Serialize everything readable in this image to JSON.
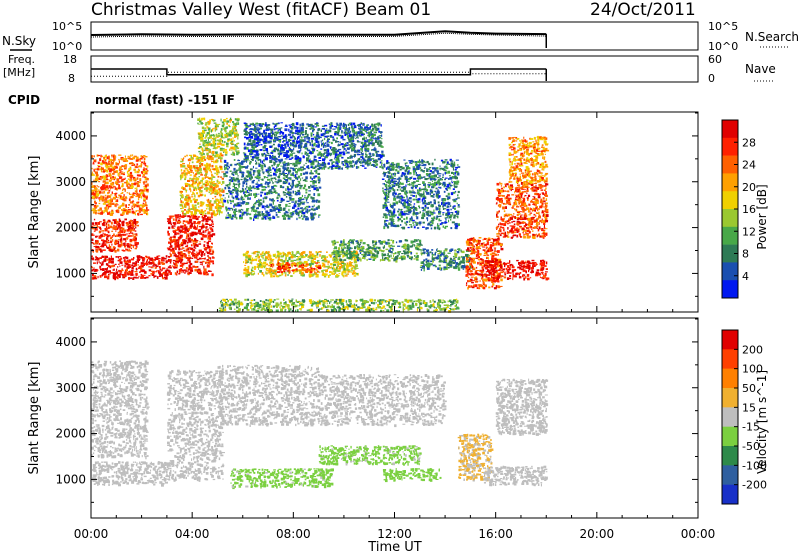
{
  "header": {
    "station": "Christmas Valley West (fitACF)",
    "beam": "Beam 01",
    "date": "24/Oct/2011"
  },
  "noise_panel": {
    "left_label": "N.Sky",
    "right_label": "N.Search",
    "left_ticks": [
      "10^5",
      "10^0"
    ],
    "right_ticks": [
      "10^5",
      "10^0"
    ]
  },
  "freq_panel": {
    "left_label_1": "Freq.",
    "left_label_2": "[MHz]",
    "right_label": "Nave",
    "left_ticks": [
      "18",
      "8"
    ],
    "right_ticks": [
      "60",
      "0"
    ]
  },
  "cpid": {
    "label": "CPID",
    "text": "normal (fast) -151 IF"
  },
  "colors": {
    "background": "#ffffff",
    "axis": "#000000"
  },
  "chart_data": [
    {
      "type": "line",
      "panel": "noise",
      "x_unit": "hours UT",
      "xlim": [
        0,
        24
      ],
      "y_scale": "log",
      "ylim": [
        1,
        100000
      ],
      "series": [
        {
          "name": "N.Sky",
          "x": [
            0,
            2,
            4,
            6,
            8,
            10,
            12,
            14,
            15,
            16,
            18
          ],
          "y": [
            500,
            700,
            600,
            650,
            600,
            550,
            600,
            3000,
            1500,
            1000,
            800
          ]
        },
        {
          "name": "N.Search",
          "x": [
            0,
            2,
            4,
            6,
            8,
            10,
            12,
            14,
            15,
            16,
            18
          ],
          "y": [
            200,
            300,
            250,
            260,
            250,
            240,
            260,
            1200,
            700,
            500,
            300
          ]
        }
      ]
    },
    {
      "type": "line",
      "panel": "frequency",
      "x_unit": "hours UT",
      "xlim": [
        0,
        24
      ],
      "ylim": [
        8,
        18
      ],
      "series": [
        {
          "name": "Freq.",
          "x": [
            0,
            3,
            3,
            15,
            15,
            18
          ],
          "y": [
            13.0,
            13.0,
            10.6,
            10.6,
            13.0,
            13.0
          ]
        },
        {
          "name": "Nave",
          "x": [
            0,
            3,
            3,
            15,
            15,
            18
          ],
          "y": [
            12,
            12,
            22,
            22,
            18,
            18
          ]
        }
      ]
    },
    {
      "type": "heatmap",
      "panel": "power",
      "xlabel": "",
      "ylabel": "Slant Range [km]",
      "xlim": [
        0,
        24
      ],
      "ylim": [
        180,
        4500
      ],
      "yticks": [
        1000,
        2000,
        3000,
        4000
      ],
      "colorbar": {
        "label": "Power [dB]",
        "ticks": [
          "4",
          "8",
          "12",
          "16",
          "20",
          "24",
          "28"
        ],
        "colors": [
          "#0018f0",
          "#1a4fb0",
          "#2e7a55",
          "#48a848",
          "#9ac830",
          "#f0d000",
          "#ffa000",
          "#ff6000",
          "#ff2000",
          "#e00000"
        ],
        "range": [
          0,
          30
        ]
      },
      "echo_regions": [
        {
          "t0": 0.0,
          "t1": 3.0,
          "r0": 900,
          "r1": 1400,
          "power": 28
        },
        {
          "t0": 0.0,
          "t1": 1.8,
          "r0": 1500,
          "r1": 2200,
          "power": 26
        },
        {
          "t0": 0.0,
          "t1": 2.2,
          "r0": 2300,
          "r1": 3600,
          "power": 22
        },
        {
          "t0": 3.0,
          "t1": 4.8,
          "r0": 1000,
          "r1": 2300,
          "power": 27
        },
        {
          "t0": 3.5,
          "t1": 5.2,
          "r0": 2300,
          "r1": 3600,
          "power": 18
        },
        {
          "t0": 4.2,
          "t1": 5.8,
          "r0": 3600,
          "r1": 4400,
          "power": 14
        },
        {
          "t0": 5.2,
          "t1": 9.0,
          "r0": 2200,
          "r1": 3500,
          "power": 7
        },
        {
          "t0": 6.0,
          "t1": 8.5,
          "r0": 3500,
          "r1": 4300,
          "power": 5
        },
        {
          "t0": 8.5,
          "t1": 11.5,
          "r0": 3300,
          "r1": 4300,
          "power": 6
        },
        {
          "t0": 11.5,
          "t1": 14.5,
          "r0": 2000,
          "r1": 3500,
          "power": 7
        },
        {
          "t0": 6.0,
          "t1": 10.5,
          "r0": 950,
          "r1": 1500,
          "power": 16
        },
        {
          "t0": 7.0,
          "t1": 9.0,
          "r0": 1050,
          "r1": 1250,
          "power": 24
        },
        {
          "t0": 9.5,
          "t1": 13.0,
          "r0": 1300,
          "r1": 1750,
          "power": 10
        },
        {
          "t0": 13.0,
          "t1": 15.0,
          "r0": 1100,
          "r1": 1550,
          "power": 8
        },
        {
          "t0": 14.8,
          "t1": 16.2,
          "r0": 700,
          "r1": 1800,
          "power": 24
        },
        {
          "t0": 15.5,
          "t1": 18.0,
          "r0": 900,
          "r1": 1300,
          "power": 28
        },
        {
          "t0": 16.0,
          "t1": 18.0,
          "r0": 1800,
          "r1": 3000,
          "power": 24
        },
        {
          "t0": 16.5,
          "t1": 18.0,
          "r0": 3000,
          "r1": 4000,
          "power": 20
        },
        {
          "t0": 5.0,
          "t1": 14.5,
          "r0": 200,
          "r1": 450,
          "power": 12
        }
      ]
    },
    {
      "type": "heatmap",
      "panel": "velocity",
      "xlabel": "Time UT",
      "ylabel": "Slant Range [km]",
      "xlim": [
        0,
        24
      ],
      "ylim": [
        180,
        4500
      ],
      "yticks": [
        1000,
        2000,
        3000,
        4000
      ],
      "xticks": [
        "00:00",
        "04:00",
        "08:00",
        "12:00",
        "16:00",
        "20:00",
        "00:00"
      ],
      "colorbar": {
        "label": "Velocity [m s^-1]",
        "ticks": [
          "200",
          "100",
          "50",
          "15",
          "-15",
          "-50",
          "-100",
          "-200"
        ],
        "colors": [
          "#1830c8",
          "#2f5f9f",
          "#2e8a4a",
          "#7bd040",
          "#bebebe",
          "#f0b030",
          "#ff8000",
          "#ff4000",
          "#e00000"
        ],
        "range": [
          -250,
          250
        ]
      },
      "echo_regions": [
        {
          "t0": 0.0,
          "t1": 3.0,
          "r0": 900,
          "r1": 1400,
          "velocity": 0
        },
        {
          "t0": 0.0,
          "t1": 2.2,
          "r0": 1500,
          "r1": 3600,
          "velocity": 0
        },
        {
          "t0": 3.0,
          "t1": 5.2,
          "r0": 1000,
          "r1": 3400,
          "velocity": 0
        },
        {
          "t0": 5.5,
          "t1": 9.5,
          "r0": 850,
          "r1": 1250,
          "velocity": -40
        },
        {
          "t0": 9.0,
          "t1": 13.0,
          "r0": 1350,
          "r1": 1750,
          "velocity": -40
        },
        {
          "t0": 11.5,
          "t1": 13.8,
          "r0": 1000,
          "r1": 1250,
          "velocity": -45
        },
        {
          "t0": 14.5,
          "t1": 15.8,
          "r0": 1000,
          "r1": 2000,
          "velocity": 30
        },
        {
          "t0": 15.5,
          "t1": 18.0,
          "r0": 900,
          "r1": 1300,
          "velocity": 0
        },
        {
          "t0": 16.0,
          "t1": 18.0,
          "r0": 2000,
          "r1": 3200,
          "velocity": 0
        },
        {
          "t0": 5.0,
          "t1": 9.0,
          "r0": 2200,
          "r1": 3500,
          "velocity": 0
        },
        {
          "t0": 9.0,
          "t1": 14.0,
          "r0": 2200,
          "r1": 3300,
          "velocity": 0
        }
      ]
    }
  ]
}
